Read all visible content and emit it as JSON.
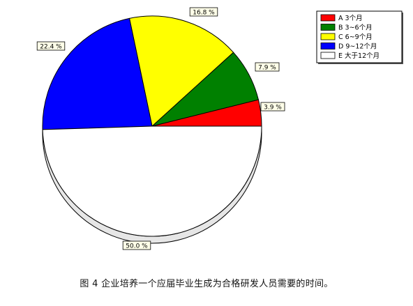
{
  "chart_data": {
    "type": "pie",
    "title": "",
    "slices": [
      {
        "label": "A 3个月",
        "value": 3.9,
        "data_label": "3.9 %",
        "color": "#ff0000"
      },
      {
        "label": "B 3~6个月",
        "value": 7.9,
        "data_label": "7.9 %",
        "color": "#008000"
      },
      {
        "label": "C 6~9个月",
        "value": 16.8,
        "data_label": "16.8 %",
        "color": "#ffff00"
      },
      {
        "label": "D 9~12个月",
        "value": 22.4,
        "data_label": "22.4 %",
        "color": "#0000ff"
      },
      {
        "label": "E 大于12个月",
        "value": 50.0,
        "data_label": "50.0 %",
        "color": "#ffffff"
      }
    ],
    "legend_position": "top-right",
    "three_d": true
  },
  "caption": "图 4  企业培养一个应届毕业生成为合格研发人员需要的时间。"
}
